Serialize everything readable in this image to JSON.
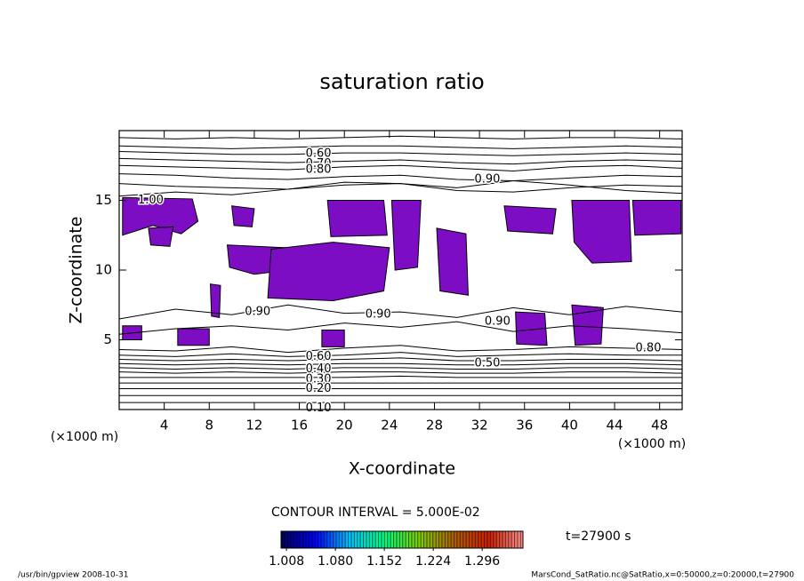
{
  "chart_data": {
    "type": "contour",
    "title": "saturation ratio",
    "x_label": "X-coordinate",
    "y_label": "Z-coordinate",
    "x_unit_label": "(×1000 m)",
    "y_unit_label": "(×1000 m)",
    "xlim": [
      0,
      50
    ],
    "ylim": [
      0,
      20
    ],
    "xticks": [
      4,
      8,
      12,
      16,
      20,
      24,
      28,
      32,
      36,
      40,
      44,
      48
    ],
    "yticks": [
      5,
      10,
      15
    ],
    "line_color": "#000000",
    "shade_color": "#7d0dc3",
    "x_grid": [
      0,
      5,
      10,
      15,
      20,
      25,
      30,
      35,
      40,
      45,
      50
    ],
    "contours": [
      {
        "values": [
          19.5,
          19.4,
          19.5,
          19.4,
          19.5,
          19.6,
          19.5,
          19.4,
          19.5,
          19.5,
          19.4
        ]
      },
      {
        "values": [
          18.9,
          18.8,
          18.7,
          18.8,
          18.9,
          18.9,
          18.8,
          18.7,
          18.8,
          18.9,
          18.8
        ]
      },
      {
        "values": [
          18.5,
          18.4,
          18.3,
          18.3,
          18.4,
          18.4,
          18.3,
          18.2,
          18.3,
          18.4,
          18.3
        ]
      },
      {
        "values": [
          18.0,
          17.9,
          17.8,
          17.7,
          17.8,
          17.9,
          17.7,
          17.6,
          17.8,
          17.9,
          17.8
        ]
      },
      {
        "values": [
          17.5,
          17.4,
          17.3,
          17.2,
          17.4,
          17.5,
          17.3,
          17.1,
          17.4,
          17.5,
          17.3
        ]
      },
      {
        "values": [
          16.9,
          16.8,
          16.6,
          16.5,
          16.7,
          16.8,
          16.5,
          16.4,
          16.6,
          16.8,
          16.7
        ]
      },
      {
        "values": [
          16.2,
          16.0,
          15.9,
          15.8,
          16.1,
          16.2,
          15.7,
          15.6,
          15.9,
          16.1,
          16.0
        ]
      },
      {
        "values": [
          15.3,
          15.6,
          15.4,
          15.8,
          16.3,
          16.2,
          15.9,
          16.4,
          16.1,
          15.7,
          15.5
        ]
      },
      {
        "values": [
          6.5,
          7.2,
          6.8,
          7.5,
          6.9,
          7.0,
          6.6,
          7.3,
          6.8,
          7.4,
          7.0
        ]
      },
      {
        "values": [
          5.4,
          5.8,
          6.0,
          5.7,
          6.2,
          5.9,
          6.3,
          5.6,
          6.0,
          5.8,
          5.5
        ]
      },
      {
        "values": [
          4.3,
          4.2,
          4.5,
          4.1,
          4.4,
          4.6,
          4.2,
          4.3,
          4.5,
          4.4,
          4.3
        ]
      },
      {
        "values": [
          3.9,
          3.8,
          4.0,
          3.8,
          3.9,
          4.1,
          3.8,
          3.9,
          4.0,
          3.9,
          3.9
        ]
      },
      {
        "values": [
          3.6,
          3.5,
          3.6,
          3.5,
          3.6,
          3.7,
          3.5,
          3.5,
          3.6,
          3.6,
          3.5
        ]
      },
      {
        "values": [
          3.3,
          3.2,
          3.3,
          3.2,
          3.3,
          3.3,
          3.2,
          3.2,
          3.3,
          3.3,
          3.2
        ]
      },
      {
        "values": [
          3.0,
          2.9,
          3.0,
          2.9,
          3.0,
          3.0,
          2.9,
          2.9,
          3.0,
          3.0,
          2.9
        ]
      },
      {
        "values": [
          2.7,
          2.6,
          2.7,
          2.6,
          2.7,
          2.7,
          2.6,
          2.6,
          2.7,
          2.7,
          2.6
        ]
      },
      {
        "values": [
          2.3,
          2.3,
          2.3,
          2.3,
          2.3,
          2.4,
          2.3,
          2.3,
          2.3,
          2.3,
          2.3
        ]
      },
      {
        "values": [
          1.9,
          1.9,
          1.9,
          1.9,
          1.9,
          1.9,
          1.9,
          1.9,
          1.9,
          1.9,
          1.9
        ]
      },
      {
        "values": [
          1.5,
          1.5,
          1.5,
          1.5,
          1.5,
          1.5,
          1.5,
          1.5,
          1.5,
          1.5,
          1.5
        ]
      },
      {
        "values": [
          1.0,
          1.0,
          1.0,
          1.0,
          1.0,
          1.0,
          1.0,
          1.0,
          1.0,
          1.0,
          1.0
        ]
      },
      {
        "values": [
          0.5,
          0.5,
          0.5,
          0.5,
          0.5,
          0.5,
          0.5,
          0.5,
          0.5,
          0.5,
          0.5
        ]
      }
    ],
    "regions": [
      {
        "points": [
          [
            0.3,
            15.2
          ],
          [
            6.5,
            15.1
          ],
          [
            7,
            13.5
          ],
          [
            5.5,
            12.6
          ],
          [
            3,
            13.2
          ],
          [
            0.3,
            12.5
          ]
        ]
      },
      {
        "points": [
          [
            2.6,
            13.0
          ],
          [
            4.8,
            13.1
          ],
          [
            4.5,
            11.7
          ],
          [
            2.8,
            11.8
          ]
        ]
      },
      {
        "points": [
          [
            10,
            14.6
          ],
          [
            12,
            14.4
          ],
          [
            11.8,
            13.1
          ],
          [
            10.2,
            13.2
          ]
        ]
      },
      {
        "points": [
          [
            9.6,
            11.8
          ],
          [
            14.8,
            11.6
          ],
          [
            15,
            10.0
          ],
          [
            12,
            9.7
          ],
          [
            9.8,
            10.2
          ]
        ]
      },
      {
        "points": [
          [
            13.5,
            11.5
          ],
          [
            19,
            12.0
          ],
          [
            24,
            11.6
          ],
          [
            23.5,
            8.5
          ],
          [
            19,
            7.8
          ],
          [
            13.2,
            8.0
          ]
        ]
      },
      {
        "points": [
          [
            18.5,
            15.0
          ],
          [
            23.5,
            15.0
          ],
          [
            23.8,
            12.5
          ],
          [
            18.8,
            12.4
          ]
        ]
      },
      {
        "points": [
          [
            24.2,
            15.0
          ],
          [
            26.8,
            15.0
          ],
          [
            26.5,
            10.2
          ],
          [
            24.5,
            10.0
          ]
        ]
      },
      {
        "points": [
          [
            28.2,
            13.0
          ],
          [
            30.8,
            12.6
          ],
          [
            31,
            8.2
          ],
          [
            28.5,
            8.5
          ]
        ]
      },
      {
        "points": [
          [
            34.2,
            14.6
          ],
          [
            38.8,
            14.4
          ],
          [
            38.5,
            12.6
          ],
          [
            34.5,
            12.8
          ]
        ]
      },
      {
        "points": [
          [
            40.2,
            15.0
          ],
          [
            45.3,
            15.0
          ],
          [
            45.5,
            10.6
          ],
          [
            42,
            10.5
          ],
          [
            40.4,
            12.0
          ]
        ]
      },
      {
        "points": [
          [
            45.6,
            15.0
          ],
          [
            49.9,
            15.0
          ],
          [
            49.9,
            12.6
          ],
          [
            45.8,
            12.5
          ]
        ]
      },
      {
        "points": [
          [
            8.1,
            9.0
          ],
          [
            9,
            8.9
          ],
          [
            8.9,
            6.6
          ],
          [
            8.2,
            6.7
          ]
        ]
      },
      {
        "points": [
          [
            35.2,
            7.0
          ],
          [
            37.8,
            6.9
          ],
          [
            38,
            4.6
          ],
          [
            35.3,
            4.7
          ]
        ]
      },
      {
        "points": [
          [
            40.2,
            7.5
          ],
          [
            43,
            7.3
          ],
          [
            42.8,
            4.7
          ],
          [
            40.5,
            4.6
          ]
        ]
      },
      {
        "points": [
          [
            0.3,
            6.0
          ],
          [
            2,
            6.0
          ],
          [
            2,
            5.0
          ],
          [
            0.3,
            5.0
          ]
        ]
      },
      {
        "points": [
          [
            5.2,
            5.8
          ],
          [
            8,
            5.8
          ],
          [
            8,
            4.6
          ],
          [
            5.2,
            4.6
          ]
        ]
      },
      {
        "points": [
          [
            18,
            5.7
          ],
          [
            20,
            5.7
          ],
          [
            20,
            4.5
          ],
          [
            18,
            4.5
          ]
        ]
      }
    ],
    "contour_labels": [
      {
        "text": "0.60",
        "x": 17.7,
        "z": 18.35
      },
      {
        "text": "0.70",
        "x": 17.7,
        "z": 17.6
      },
      {
        "text": "0.80",
        "x": 17.7,
        "z": 17.2
      },
      {
        "text": "0.90",
        "x": 32.7,
        "z": 16.5
      },
      {
        "text": "1.00",
        "x": 2.8,
        "z": 15.0
      },
      {
        "text": "0.90",
        "x": 12.3,
        "z": 7.0
      },
      {
        "text": "0.90",
        "x": 23.0,
        "z": 6.8
      },
      {
        "text": "0.90",
        "x": 33.6,
        "z": 6.3
      },
      {
        "text": "0.80",
        "x": 47.0,
        "z": 4.4
      },
      {
        "text": "0.60",
        "x": 17.7,
        "z": 3.8
      },
      {
        "text": "0.50",
        "x": 32.7,
        "z": 3.3
      },
      {
        "text": "0.40",
        "x": 17.7,
        "z": 2.9
      },
      {
        "text": "0.30",
        "x": 17.7,
        "z": 2.15
      },
      {
        "text": "0.20",
        "x": 17.7,
        "z": 1.5
      },
      {
        "text": "0.10",
        "x": 17.7,
        "z": 0.1
      }
    ],
    "contour_interval": "CONTOUR INTERVAL = 5.000E-02",
    "time_label": "t=27900 s",
    "colorbar": {
      "clim": [
        1.0,
        1.356
      ],
      "colors": [
        "#00005a",
        "#0000ff",
        "#00c8ff",
        "#00ff80",
        "#80d000",
        "#b06000",
        "#d02000",
        "#ff9090"
      ],
      "ticks": [
        1.008,
        {
          "value": 1.08,
          "label": "1.080"
        },
        1.152,
        1.224,
        1.296
      ]
    },
    "footer_left": "/usr/bin/gpview   2008-10-31",
    "footer_right": "MarsCond_SatRatio.nc@SatRatio,x=0:50000,z=0:20000,t=27900"
  }
}
